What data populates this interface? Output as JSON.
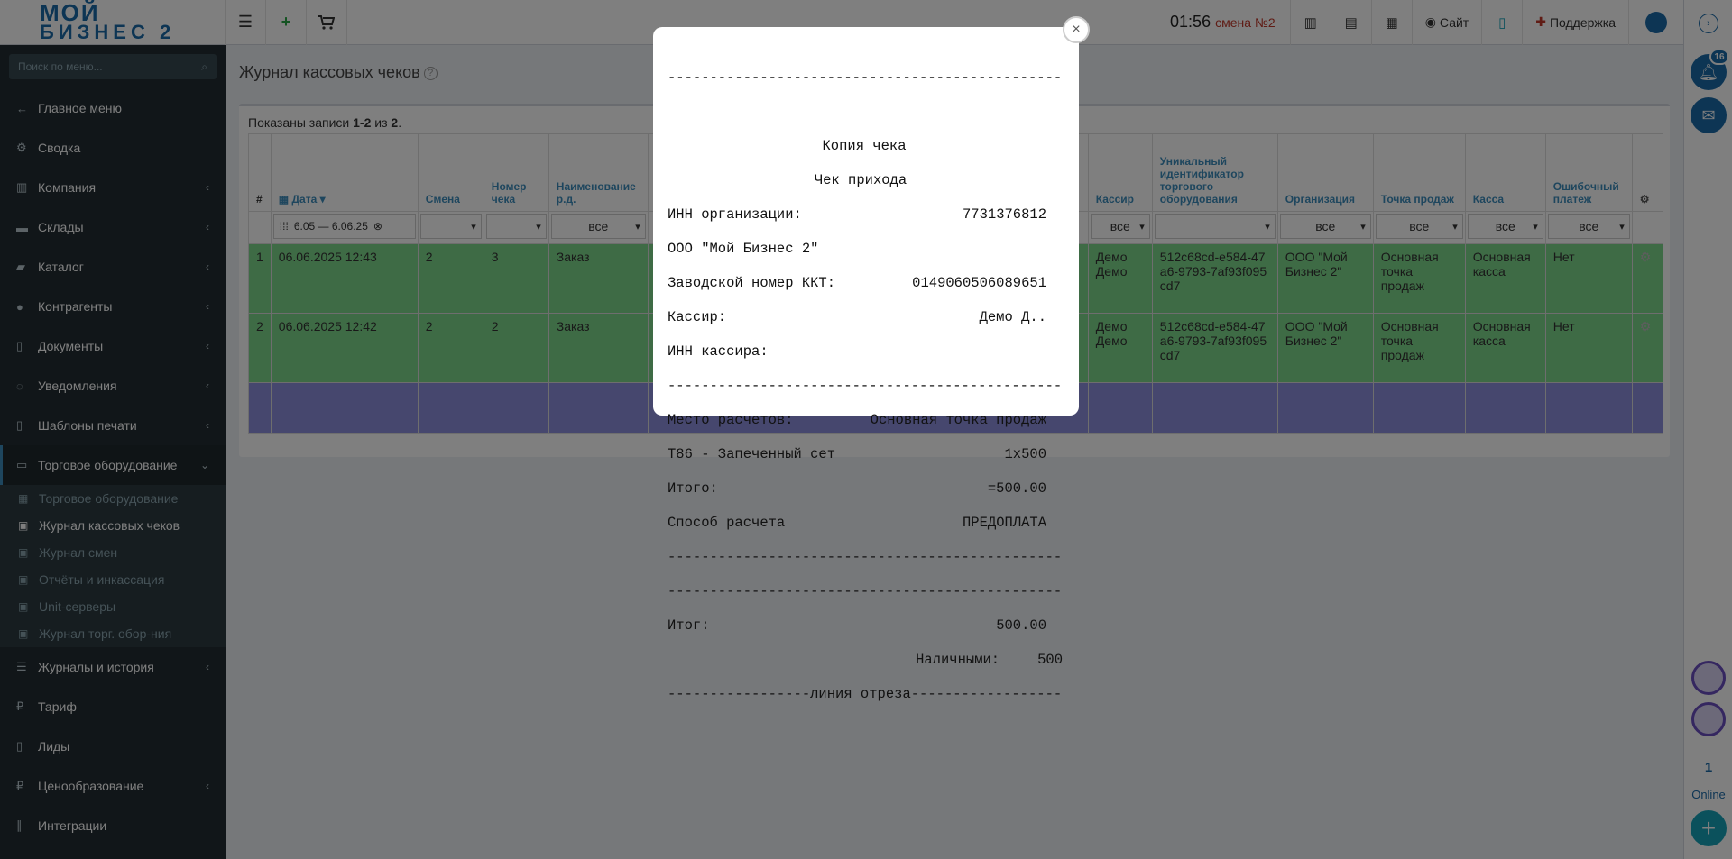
{
  "topbar": {
    "logo_line1": "МОЙ",
    "logo_line2": "БИЗНЕС 2",
    "time": "01:56",
    "shift": "смена №2",
    "site_label": "Сайт",
    "support_label": "Поддержка"
  },
  "sidebar": {
    "search_placeholder": "Поиск по меню...",
    "items": [
      {
        "label": "Главное меню",
        "icon": "arrow-left-icon"
      },
      {
        "label": "Сводка",
        "icon": "gear-icon"
      },
      {
        "label": "Компания",
        "icon": "chart-icon"
      },
      {
        "label": "Склады",
        "icon": "truck-icon"
      },
      {
        "label": "Каталог",
        "icon": "folder-icon"
      },
      {
        "label": "Контрагенты",
        "icon": "users-icon"
      },
      {
        "label": "Документы",
        "icon": "document-icon"
      },
      {
        "label": "Уведомления",
        "icon": "chat-icon"
      },
      {
        "label": "Шаблоны печати",
        "icon": "file-icon"
      },
      {
        "label": "Торговое оборудование",
        "icon": "inbox-icon"
      }
    ],
    "subitems": [
      {
        "label": "Торговое оборудование"
      },
      {
        "label": "Журнал кассовых чеков"
      },
      {
        "label": "Журнал смен"
      },
      {
        "label": "Отчёты и инкассация"
      },
      {
        "label": "Unit-серверы"
      },
      {
        "label": "Журнал торг. обор-ния"
      }
    ],
    "items_after": [
      {
        "label": "Журналы и история",
        "icon": "list-icon"
      },
      {
        "label": "Тариф",
        "icon": "ruble-icon"
      },
      {
        "label": "Лиды",
        "icon": "document-icon"
      },
      {
        "label": "Ценообразование",
        "icon": "ruble-icon"
      },
      {
        "label": "Интеграции",
        "icon": "paperclip-icon"
      }
    ]
  },
  "rail": {
    "notifications_badge": "16",
    "online_count": "1",
    "online_label": "Online"
  },
  "page": {
    "title": "Журнал кассовых чеков",
    "summary_prefix": "Показаны записи ",
    "summary_range": "1-2",
    "summary_mid": " из ",
    "summary_total": "2",
    "summary_suffix": "."
  },
  "table": {
    "headers": [
      "#",
      "Дата",
      "Смена",
      "Номер чека",
      "Наименование р.д.",
      "Кассир",
      "Уникальный идентификатор торгового оборудования",
      "Организация",
      "Точка продаж",
      "Касса",
      "Ошибочный платеж"
    ],
    "date_filter": "6.05 — 6.06.25",
    "filter_all": "все",
    "rows": [
      {
        "n": "1",
        "date": "06.06.2025 12:43",
        "shift": "2",
        "number": "3",
        "doc": "Заказ",
        "cashier": "Демо Демо",
        "uid": "512c68cd-e584-47a6-9793-7af93f095cd7",
        "org": "ООО \"Мой Бизнес 2\"",
        "point": "Основная точка продаж",
        "till": "Основная касса",
        "error": "Нет"
      },
      {
        "n": "2",
        "date": "06.06.2025 12:42",
        "shift": "2",
        "number": "2",
        "doc": "Заказ",
        "cashier": "Демо Демо",
        "uid": "512c68cd-e584-47a6-9793-7af93f095cd7",
        "org": "ООО \"Мой Бизнес 2\"",
        "point": "Основная точка продаж",
        "till": "Основная касса",
        "error": "Нет"
      }
    ]
  },
  "receipt": {
    "sep": "-----------------------------------------------",
    "title1": "Копия чека",
    "title2": "Чек прихода",
    "inn_org_label": "ИНН организации:",
    "inn_org_value": "7731376812",
    "org_name": "ООО \"Мой Бизнес 2\"",
    "kkt_label": "Заводской номер ККТ:",
    "kkt_value": "0149060506089651",
    "cashier_label": "Кассир:",
    "cashier_value": "Демо Д..",
    "inn_cashier_label": "ИНН кассира:",
    "place_label": "Место расчетов:",
    "place_value": "Основная точка продаж",
    "item_label": "Т86 - Запеченный сет",
    "item_value": "1x500",
    "total_label": "Итого:",
    "total_value": "=500.00",
    "pay_label": "Способ расчета",
    "pay_value": "ПРЕДОПЛАТА",
    "sum_label": "Итог:",
    "sum_value": "500.00",
    "cash_label": "Наличными:",
    "cash_value": "500",
    "cut_line": "-----------------линия отреза------------------"
  }
}
